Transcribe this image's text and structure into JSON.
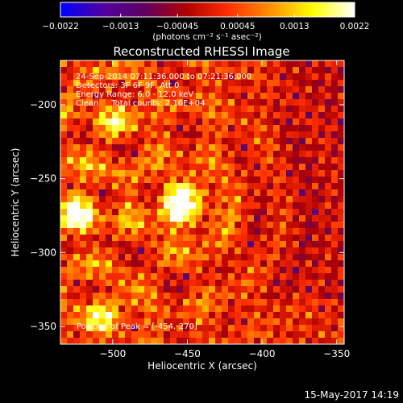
{
  "chart_data": {
    "type": "heatmap",
    "title": "Reconstructed RHESSI Image",
    "xlabel": "Heliocentric X (arcsec)",
    "ylabel": "Heliocentric Y (arcsec)",
    "xlim": [
      -535,
      -345
    ],
    "ylim": [
      -362,
      -170
    ],
    "x_ticks": [
      -500,
      -450,
      -400,
      -350
    ],
    "y_ticks": [
      -350,
      -300,
      -250,
      -200
    ],
    "x_tick_labels": [
      "−500",
      "−450",
      "−400",
      "−350"
    ],
    "y_tick_labels": [
      "−350",
      "−300",
      "−250",
      "−200"
    ],
    "colorbar": {
      "range": [
        -0.0022,
        0.0022
      ],
      "ticks": [
        -0.0022,
        -0.0013,
        -0.00045,
        0.00045,
        0.0013,
        0.0022
      ],
      "tick_labels": [
        "−0.0022",
        "−0.0013",
        "−0.00045",
        "0.00045",
        "0.0013",
        "0.0022"
      ],
      "unit_label": "(photons cm⁻² s⁻¹ asec⁻²)",
      "colors": [
        "#0000ff",
        "#5000a0",
        "#600060",
        "#b00000",
        "#ff3000",
        "#ff9000",
        "#ffff00",
        "#ffffff"
      ]
    },
    "info_lines": [
      "24-Sep-2014 07:11:36.000 to 07:21:36.000",
      "Detectors: 3F 6F 9F, Att 0",
      "Energy Range: 6.0 - 12.0 keV",
      "Clean     Total counts: 2.16E+04"
    ],
    "peak_label": "Position of Peak = [-454,-270]",
    "peak_position": [
      -454,
      -270
    ],
    "sources": [
      {
        "x": -454,
        "y": -268,
        "amplitude": 0.0022
      },
      {
        "x": -524,
        "y": -272,
        "amplitude": 0.0017
      },
      {
        "x": -507,
        "y": -344,
        "amplitude": 0.0013
      },
      {
        "x": -500,
        "y": -212,
        "amplitude": 0.001
      }
    ]
  },
  "footer": {
    "timestamp": "15-May-2017 14:19"
  }
}
